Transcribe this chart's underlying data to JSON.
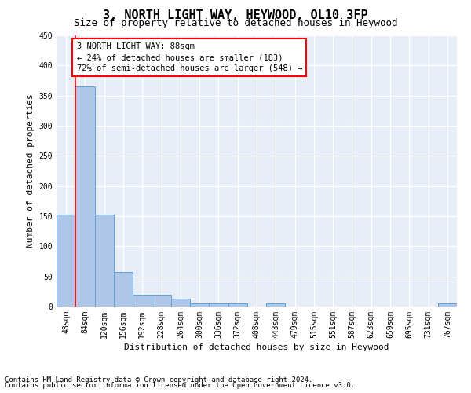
{
  "title": "3, NORTH LIGHT WAY, HEYWOOD, OL10 3FP",
  "subtitle": "Size of property relative to detached houses in Heywood",
  "xlabel": "Distribution of detached houses by size in Heywood",
  "ylabel": "Number of detached properties",
  "footnote1": "Contains HM Land Registry data © Crown copyright and database right 2024.",
  "footnote2": "Contains public sector information licensed under the Open Government Licence v3.0.",
  "annotation_line1": "3 NORTH LIGHT WAY: 88sqm",
  "annotation_line2": "← 24% of detached houses are smaller (183)",
  "annotation_line3": "72% of semi-detached houses are larger (548) →",
  "bins": [
    "48sqm",
    "84sqm",
    "120sqm",
    "156sqm",
    "192sqm",
    "228sqm",
    "264sqm",
    "300sqm",
    "336sqm",
    "372sqm",
    "408sqm",
    "443sqm",
    "479sqm",
    "515sqm",
    "551sqm",
    "587sqm",
    "623sqm",
    "659sqm",
    "695sqm",
    "731sqm",
    "767sqm"
  ],
  "bar_values": [
    153,
    365,
    152,
    58,
    20,
    20,
    13,
    5,
    5,
    5,
    0,
    5,
    0,
    0,
    0,
    0,
    0,
    0,
    0,
    0,
    5
  ],
  "bar_color": "#aec6e8",
  "bar_edge_color": "#5a9fd4",
  "highlight_line_color": "red",
  "ylim": [
    0,
    450
  ],
  "yticks": [
    0,
    50,
    100,
    150,
    200,
    250,
    300,
    350,
    400,
    450
  ],
  "bg_color": "#e8eef7",
  "grid_color": "white",
  "title_fontsize": 11,
  "subtitle_fontsize": 9,
  "axis_label_fontsize": 8,
  "tick_fontsize": 7,
  "annotation_fontsize": 7.5,
  "footnote_fontsize": 6.5
}
